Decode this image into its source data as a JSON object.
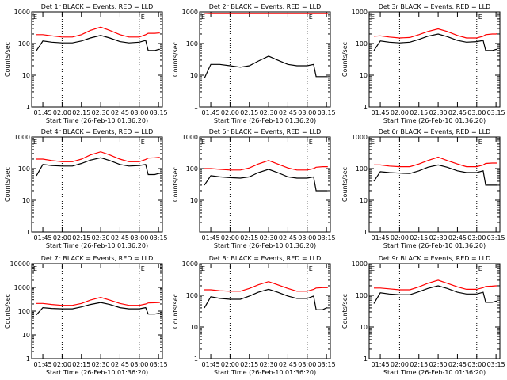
{
  "colors": {
    "events": "#000000",
    "lld": "#ff0000",
    "axes": "#000000"
  },
  "common": {
    "xlabel": "Start Time (26-Feb-10 01:36:20)",
    "ylabel": "Counts/sec",
    "x_ticks": [
      "01:45",
      "02:00",
      "02:15",
      "02:30",
      "02:45",
      "03:00",
      "03:15"
    ],
    "y_tick_labels": {
      "1": "1",
      "10": "10",
      "100": "100",
      "1000": "1000",
      "10000": "10000"
    },
    "vlines": [
      "02:00",
      "03:00"
    ],
    "flag": "E"
  },
  "chart_data": [
    {
      "type": "line",
      "title": "Det 1r BLACK = Events, RED = LLD",
      "xlim": [
        "01:36:20",
        "03:18:00"
      ],
      "ylim": [
        1,
        1000
      ],
      "yscale": "log",
      "grid": false,
      "x": [
        "01:40",
        "01:45",
        "01:52",
        "02:00",
        "02:08",
        "02:15",
        "02:22",
        "02:30",
        "02:37",
        "02:45",
        "02:52",
        "03:00",
        "03:05",
        "03:07",
        "03:12",
        "03:15",
        "03:16"
      ],
      "series": [
        {
          "name": "Events",
          "color": "#000000",
          "values": [
            60,
            120,
            110,
            105,
            105,
            120,
            150,
            180,
            150,
            115,
            105,
            110,
            125,
            60,
            60,
            65,
            65
          ]
        },
        {
          "name": "LLD",
          "color": "#ff0000",
          "values": [
            190,
            190,
            175,
            160,
            160,
            190,
            260,
            330,
            260,
            190,
            160,
            160,
            190,
            210,
            210,
            215,
            215
          ]
        }
      ]
    },
    {
      "type": "line",
      "title": "Det 2r BLACK = Events, RED = LLD",
      "xlim": [
        "01:36:20",
        "03:18:00"
      ],
      "ylim": [
        1,
        1000
      ],
      "yscale": "log",
      "grid": false,
      "x": [
        "01:40",
        "01:45",
        "01:52",
        "02:00",
        "02:08",
        "02:15",
        "02:22",
        "02:30",
        "02:37",
        "02:45",
        "02:52",
        "03:00",
        "03:05",
        "03:07",
        "03:12",
        "03:15",
        "03:16"
      ],
      "series": [
        {
          "name": "Events",
          "color": "#000000",
          "values": [
            8,
            22,
            22,
            20,
            18,
            20,
            28,
            40,
            30,
            22,
            20,
            20,
            22,
            9,
            9,
            9,
            9
          ]
        },
        {
          "name": "LLD",
          "color": "#ff0000",
          "values": [
            900,
            880,
            880,
            880,
            880,
            880,
            880,
            880,
            880,
            880,
            880,
            880,
            880,
            880,
            880,
            880,
            880
          ]
        }
      ]
    },
    {
      "type": "line",
      "title": "Det 3r BLACK = Events, RED = LLD",
      "xlim": [
        "01:36:20",
        "03:18:00"
      ],
      "ylim": [
        1,
        1000
      ],
      "yscale": "log",
      "grid": false,
      "x": [
        "01:40",
        "01:45",
        "01:52",
        "02:00",
        "02:08",
        "02:15",
        "02:22",
        "02:30",
        "02:37",
        "02:45",
        "02:52",
        "03:00",
        "03:05",
        "03:07",
        "03:12",
        "03:15",
        "03:16"
      ],
      "series": [
        {
          "name": "Events",
          "color": "#000000",
          "values": [
            60,
            120,
            110,
            105,
            110,
            135,
            170,
            200,
            165,
            125,
            110,
            115,
            125,
            60,
            60,
            65,
            65
          ]
        },
        {
          "name": "LLD",
          "color": "#ff0000",
          "values": [
            170,
            175,
            160,
            150,
            155,
            190,
            240,
            290,
            240,
            180,
            150,
            150,
            170,
            190,
            200,
            200,
            205
          ]
        }
      ]
    },
    {
      "type": "line",
      "title": "Det 4r BLACK = Events, RED = LLD",
      "xlim": [
        "01:36:20",
        "03:18:00"
      ],
      "ylim": [
        1,
        1000
      ],
      "yscale": "log",
      "grid": false,
      "x": [
        "01:40",
        "01:45",
        "01:52",
        "02:00",
        "02:08",
        "02:15",
        "02:22",
        "02:30",
        "02:37",
        "02:45",
        "02:52",
        "03:00",
        "03:05",
        "03:07",
        "03:12",
        "03:15",
        "03:16"
      ],
      "series": [
        {
          "name": "Events",
          "color": "#000000",
          "values": [
            60,
            135,
            125,
            120,
            120,
            145,
            185,
            220,
            180,
            135,
            120,
            125,
            135,
            65,
            65,
            70,
            70
          ]
        },
        {
          "name": "LLD",
          "color": "#ff0000",
          "values": [
            200,
            200,
            180,
            165,
            165,
            200,
            270,
            340,
            270,
            200,
            165,
            165,
            195,
            215,
            220,
            225,
            225
          ]
        }
      ]
    },
    {
      "type": "line",
      "title": "Det 5r BLACK = Events, RED = LLD",
      "xlim": [
        "01:36:20",
        "03:18:00"
      ],
      "ylim": [
        1,
        1000
      ],
      "yscale": "log",
      "grid": false,
      "x": [
        "01:40",
        "01:45",
        "01:52",
        "02:00",
        "02:08",
        "02:15",
        "02:22",
        "02:30",
        "02:37",
        "02:45",
        "02:52",
        "03:00",
        "03:05",
        "03:07",
        "03:12",
        "03:15",
        "03:16"
      ],
      "series": [
        {
          "name": "Events",
          "color": "#000000",
          "values": [
            30,
            60,
            55,
            52,
            50,
            55,
            75,
            95,
            75,
            55,
            50,
            50,
            55,
            20,
            20,
            20,
            20
          ]
        },
        {
          "name": "LLD",
          "color": "#ff0000",
          "values": [
            100,
            100,
            95,
            90,
            90,
            105,
            140,
            180,
            140,
            105,
            90,
            90,
            100,
            110,
            115,
            115,
            115
          ]
        }
      ]
    },
    {
      "type": "line",
      "title": "Det 6r BLACK = Events, RED = LLD",
      "xlim": [
        "01:36:20",
        "03:18:00"
      ],
      "ylim": [
        1,
        1000
      ],
      "yscale": "log",
      "grid": false,
      "x": [
        "01:40",
        "01:45",
        "01:52",
        "02:00",
        "02:08",
        "02:15",
        "02:22",
        "02:30",
        "02:37",
        "02:45",
        "02:52",
        "03:00",
        "03:05",
        "03:07",
        "03:12",
        "03:15",
        "03:16"
      ],
      "series": [
        {
          "name": "Events",
          "color": "#000000",
          "values": [
            40,
            80,
            75,
            72,
            70,
            85,
            110,
            130,
            110,
            85,
            75,
            75,
            85,
            30,
            30,
            30,
            30
          ]
        },
        {
          "name": "LLD",
          "color": "#ff0000",
          "values": [
            130,
            130,
            120,
            115,
            115,
            140,
            180,
            230,
            180,
            140,
            115,
            115,
            130,
            145,
            150,
            150,
            150
          ]
        }
      ]
    },
    {
      "type": "line",
      "title": "Det 7r BLACK = Events, RED = LLD",
      "xlim": [
        "01:36:20",
        "03:18:00"
      ],
      "ylim": [
        1,
        10000
      ],
      "yscale": "log",
      "grid": false,
      "x": [
        "01:40",
        "01:45",
        "01:52",
        "02:00",
        "02:08",
        "02:15",
        "02:22",
        "02:30",
        "02:37",
        "02:45",
        "02:52",
        "03:00",
        "03:05",
        "03:07",
        "03:12",
        "03:15",
        "03:16"
      ],
      "series": [
        {
          "name": "Events",
          "color": "#000000",
          "values": [
            70,
            140,
            130,
            125,
            125,
            150,
            190,
            230,
            190,
            140,
            125,
            125,
            140,
            75,
            75,
            80,
            80
          ]
        },
        {
          "name": "LLD",
          "color": "#ff0000",
          "values": [
            210,
            210,
            190,
            175,
            175,
            210,
            290,
            380,
            290,
            210,
            175,
            175,
            200,
            220,
            225,
            230,
            230
          ]
        }
      ]
    },
    {
      "type": "line",
      "title": "Det 8r BLACK = Events, RED = LLD",
      "xlim": [
        "01:36:20",
        "03:18:00"
      ],
      "ylim": [
        1,
        1000
      ],
      "yscale": "log",
      "grid": false,
      "x": [
        "01:40",
        "01:45",
        "01:52",
        "02:00",
        "02:08",
        "02:15",
        "02:22",
        "02:30",
        "02:37",
        "02:45",
        "02:52",
        "03:00",
        "03:05",
        "03:07",
        "03:12",
        "03:15",
        "03:16"
      ],
      "series": [
        {
          "name": "Events",
          "color": "#000000",
          "values": [
            40,
            90,
            80,
            75,
            75,
            95,
            125,
            155,
            125,
            95,
            80,
            80,
            95,
            35,
            35,
            40,
            40
          ]
        },
        {
          "name": "LLD",
          "color": "#ff0000",
          "values": [
            150,
            150,
            140,
            135,
            135,
            165,
            215,
            270,
            215,
            165,
            135,
            135,
            155,
            170,
            175,
            175,
            175
          ]
        }
      ]
    },
    {
      "type": "line",
      "title": "Det 9r BLACK = Events, RED = LLD",
      "xlim": [
        "01:36:20",
        "03:18:00"
      ],
      "ylim": [
        1,
        1000
      ],
      "yscale": "log",
      "grid": false,
      "x": [
        "01:40",
        "01:45",
        "01:52",
        "02:00",
        "02:08",
        "02:15",
        "02:22",
        "02:30",
        "02:37",
        "02:45",
        "02:52",
        "03:00",
        "03:05",
        "03:07",
        "03:12",
        "03:15",
        "03:16"
      ],
      "series": [
        {
          "name": "Events",
          "color": "#000000",
          "values": [
            55,
            120,
            110,
            105,
            105,
            130,
            165,
            200,
            165,
            125,
            110,
            110,
            125,
            60,
            60,
            65,
            65
          ]
        },
        {
          "name": "LLD",
          "color": "#ff0000",
          "values": [
            170,
            170,
            160,
            150,
            150,
            185,
            240,
            300,
            240,
            185,
            155,
            155,
            175,
            190,
            195,
            200,
            200
          ]
        }
      ]
    }
  ]
}
